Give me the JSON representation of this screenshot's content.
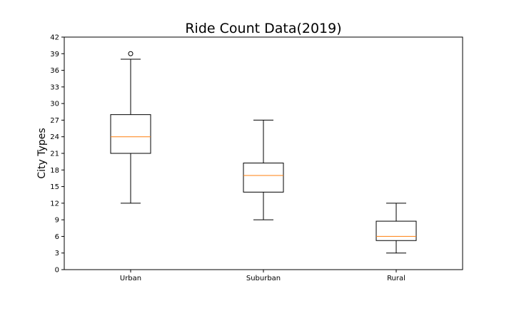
{
  "chart_data": {
    "type": "box",
    "title": "Ride Count Data(2019)",
    "xlabel": "",
    "ylabel": "City Types",
    "ylim": [
      0,
      42
    ],
    "yticks": [
      0,
      3,
      6,
      9,
      12,
      15,
      18,
      21,
      24,
      27,
      30,
      33,
      36,
      39,
      42
    ],
    "grid": false,
    "categories": [
      "Urban",
      "Suburban",
      "Rural"
    ],
    "boxes": [
      {
        "category": "Urban",
        "whisker_low": 12,
        "q1": 21,
        "median": 24,
        "q3": 28,
        "whisker_high": 38,
        "outliers": [
          39
        ]
      },
      {
        "category": "Suburban",
        "whisker_low": 9,
        "q1": 14,
        "median": 17,
        "q3": 19.25,
        "whisker_high": 27,
        "outliers": []
      },
      {
        "category": "Rural",
        "whisker_low": 3,
        "q1": 5.25,
        "median": 6,
        "q3": 8.75,
        "whisker_high": 12,
        "outliers": []
      }
    ],
    "colors": {
      "box": "#000000",
      "median": "#ff7f0e",
      "axes": "#000000"
    }
  }
}
